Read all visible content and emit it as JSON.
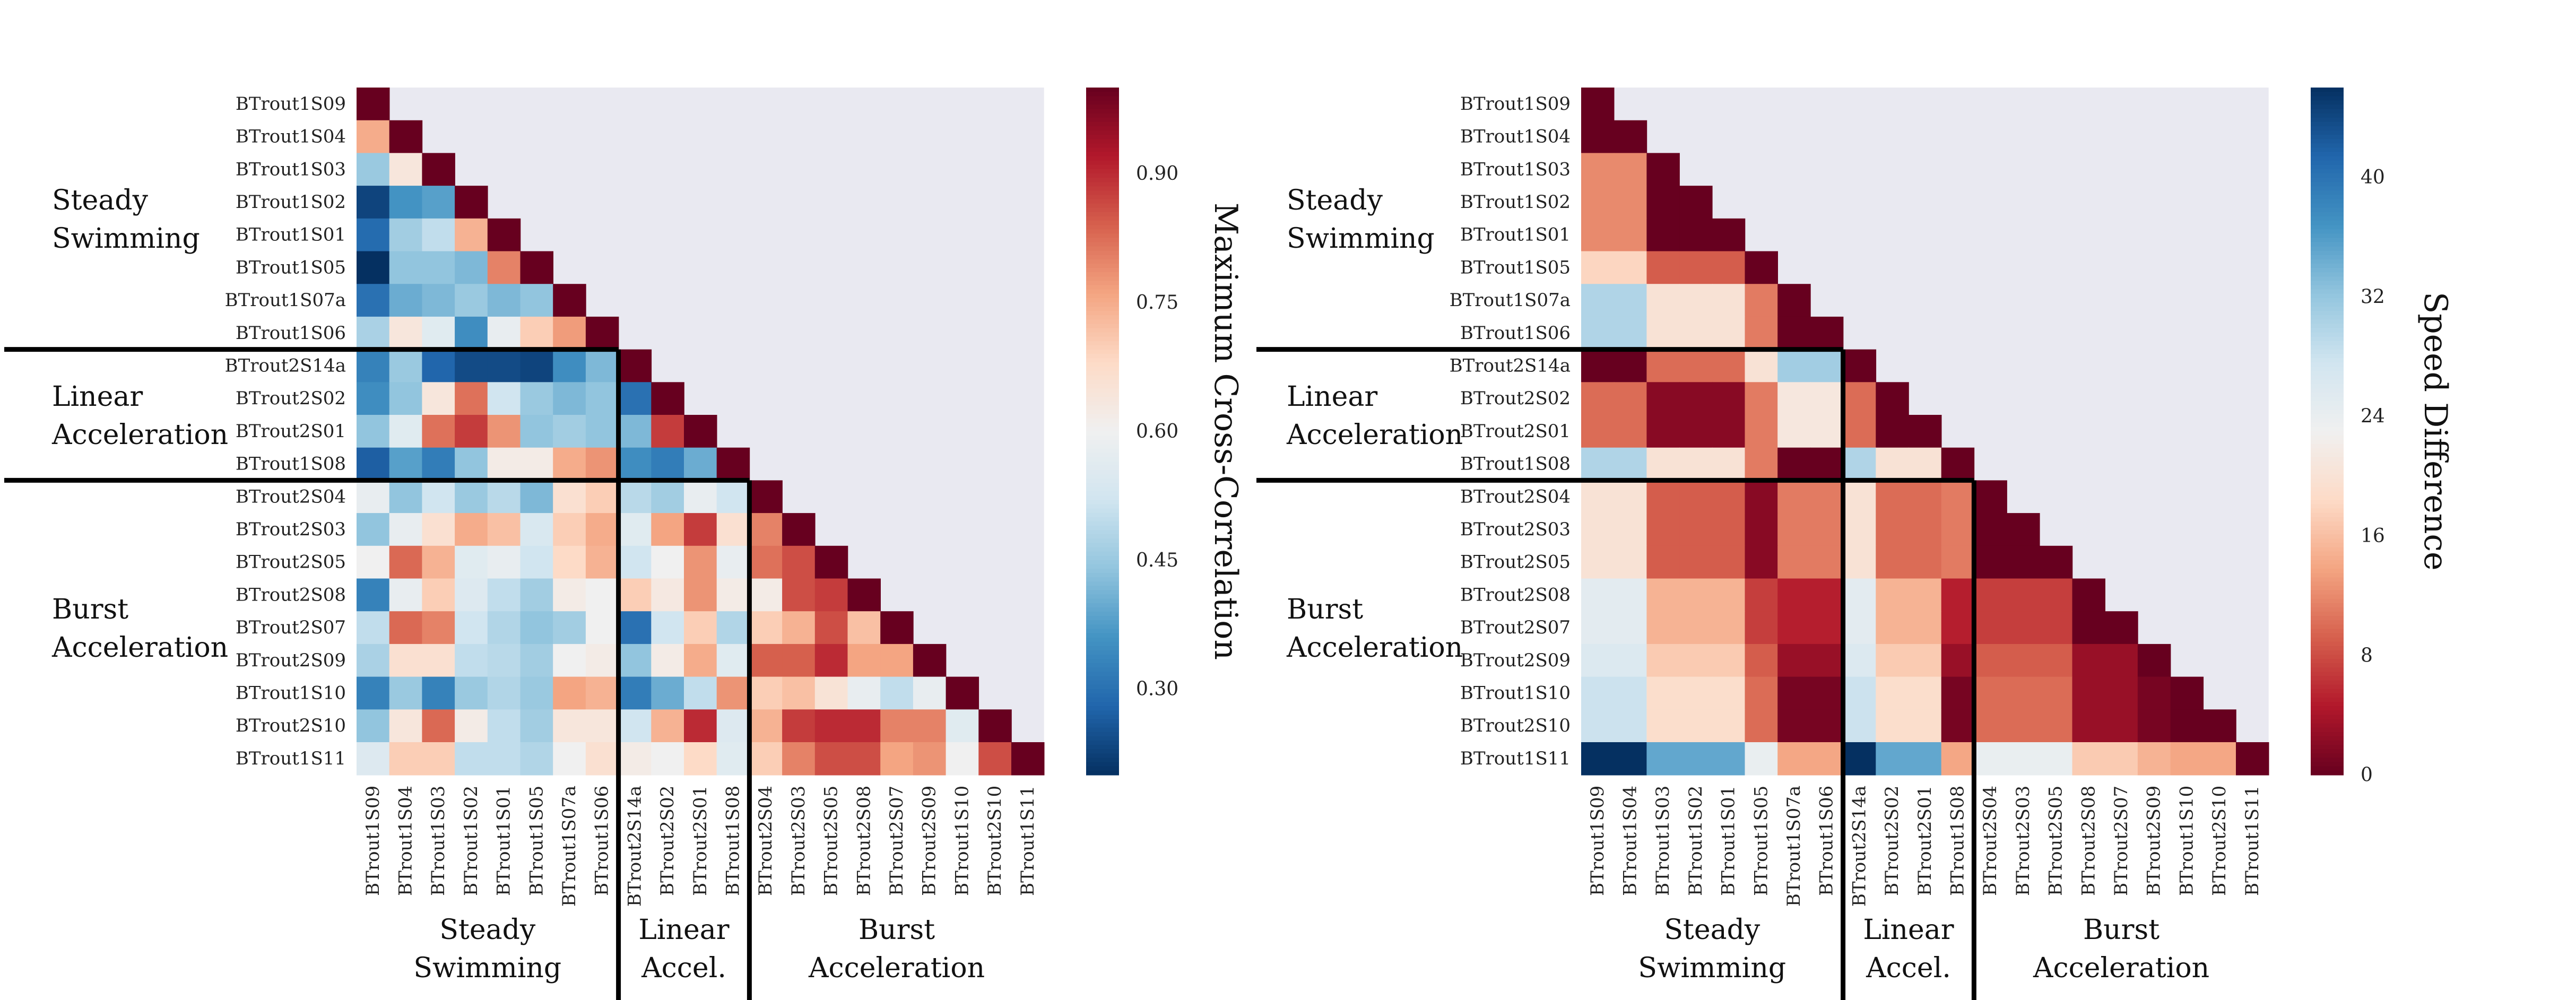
{
  "colors": {
    "panel_background": "#e9e9f1",
    "separator_lines": "#000000",
    "left_colormap": "RdBu_r (dark blue low, white mid, dark red high)",
    "right_colormap": "RdBu (dark red low, white mid, dark blue high)"
  },
  "labels": [
    "BTrout1S09",
    "BTrout1S04",
    "BTrout1S03",
    "BTrout1S02",
    "BTrout1S01",
    "BTrout1S05",
    "BTrout1S07a",
    "BTrout1S06",
    "BTrout2S14a",
    "BTrout2S02",
    "BTrout2S01",
    "BTrout1S08",
    "BTrout2S04",
    "BTrout2S03",
    "BTrout2S05",
    "BTrout2S08",
    "BTrout2S07",
    "BTrout2S09",
    "BTrout1S10",
    "BTrout2S10",
    "BTrout1S11"
  ],
  "row_groups": [
    {
      "lines": [
        "Steady",
        "Swimming"
      ]
    },
    {
      "lines": [
        "Linear",
        "Acceleration"
      ]
    },
    {
      "lines": [
        "Burst",
        "Acceleration"
      ]
    }
  ],
  "col_groups": [
    {
      "lines": [
        "Steady",
        "Swimming"
      ]
    },
    {
      "lines": [
        "Linear",
        "Accel."
      ]
    },
    {
      "lines": [
        "Burst",
        "Acceleration"
      ]
    }
  ],
  "chart_data": [
    {
      "type": "heatmap",
      "shape": "lower-triangular",
      "colorbar_label": "Maximum Cross-Correlation",
      "colorbar_range": [
        0.2,
        1.0
      ],
      "colorbar_ticks": [
        0.3,
        0.45,
        0.6,
        0.75,
        0.9
      ],
      "colorbar_tick_labels": [
        "0.30",
        "0.45",
        "0.60",
        "0.75",
        "0.90"
      ],
      "rows": [
        [
          1.0
        ],
        [
          0.75,
          1.0
        ],
        [
          0.45,
          0.64,
          1.0
        ],
        [
          0.23,
          0.36,
          0.38,
          1.0
        ],
        [
          0.29,
          0.46,
          0.5,
          0.74,
          1.0
        ],
        [
          0.2,
          0.44,
          0.44,
          0.42,
          0.8,
          1.0
        ],
        [
          0.3,
          0.4,
          0.42,
          0.45,
          0.42,
          0.44,
          1.0
        ],
        [
          0.47,
          0.64,
          0.56,
          0.35,
          0.58,
          0.7,
          0.77,
          1.0
        ],
        [
          0.33,
          0.45,
          0.28,
          0.24,
          0.24,
          0.23,
          0.35,
          0.42,
          1.0
        ],
        [
          0.35,
          0.44,
          0.64,
          0.82,
          0.52,
          0.45,
          0.42,
          0.44,
          0.3,
          1.0
        ],
        [
          0.44,
          0.56,
          0.82,
          0.88,
          0.78,
          0.44,
          0.46,
          0.44,
          0.42,
          0.88,
          1.0
        ],
        [
          0.27,
          0.38,
          0.32,
          0.44,
          0.62,
          0.62,
          0.75,
          0.78,
          0.35,
          0.32,
          0.4,
          1.0
        ],
        [
          0.58,
          0.44,
          0.52,
          0.45,
          0.49,
          0.42,
          0.66,
          0.7,
          0.49,
          0.46,
          0.58,
          0.52,
          1.0
        ],
        [
          0.44,
          0.58,
          0.66,
          0.75,
          0.72,
          0.54,
          0.7,
          0.75,
          0.56,
          0.76,
          0.88,
          0.66,
          0.8,
          1.0
        ],
        [
          0.6,
          0.83,
          0.74,
          0.56,
          0.58,
          0.52,
          0.68,
          0.74,
          0.52,
          0.6,
          0.78,
          0.58,
          0.82,
          0.86,
          1.0
        ],
        [
          0.33,
          0.58,
          0.7,
          0.55,
          0.5,
          0.46,
          0.62,
          0.6,
          0.7,
          0.63,
          0.78,
          0.62,
          0.62,
          0.86,
          0.88,
          1.0
        ],
        [
          0.5,
          0.83,
          0.8,
          0.52,
          0.48,
          0.44,
          0.46,
          0.6,
          0.3,
          0.52,
          0.7,
          0.48,
          0.7,
          0.74,
          0.86,
          0.72,
          1.0
        ],
        [
          0.47,
          0.66,
          0.66,
          0.5,
          0.49,
          0.46,
          0.6,
          0.62,
          0.44,
          0.62,
          0.75,
          0.56,
          0.84,
          0.84,
          0.9,
          0.76,
          0.76,
          1.0
        ],
        [
          0.33,
          0.45,
          0.33,
          0.45,
          0.48,
          0.45,
          0.76,
          0.74,
          0.32,
          0.4,
          0.5,
          0.78,
          0.7,
          0.72,
          0.65,
          0.58,
          0.5,
          0.58,
          1.0
        ],
        [
          0.44,
          0.64,
          0.83,
          0.62,
          0.5,
          0.46,
          0.64,
          0.64,
          0.52,
          0.74,
          0.9,
          0.55,
          0.74,
          0.88,
          0.9,
          0.9,
          0.8,
          0.8,
          0.56,
          1.0
        ],
        [
          0.55,
          0.7,
          0.7,
          0.5,
          0.5,
          0.48,
          0.6,
          0.66,
          0.62,
          0.6,
          0.68,
          0.56,
          0.7,
          0.8,
          0.86,
          0.86,
          0.76,
          0.78,
          0.6,
          0.86,
          1.0
        ]
      ]
    },
    {
      "type": "heatmap",
      "shape": "lower-triangular",
      "colorbar_label": "Speed Difference",
      "colorbar_range": [
        0,
        46
      ],
      "colorbar_ticks": [
        0,
        8,
        16,
        24,
        32,
        40
      ],
      "colorbar_tick_labels": [
        "0",
        "8",
        "16",
        "24",
        "32",
        "40"
      ],
      "rows": [
        [
          0
        ],
        [
          0,
          0
        ],
        [
          12,
          12,
          0
        ],
        [
          12,
          12,
          0,
          0
        ],
        [
          12,
          12,
          0,
          0,
          0
        ],
        [
          18,
          18,
          9,
          9,
          9,
          0
        ],
        [
          30,
          30,
          20,
          20,
          20,
          11,
          0
        ],
        [
          30,
          30,
          20,
          20,
          20,
          11,
          0,
          0
        ],
        [
          0,
          0,
          10,
          10,
          10,
          20,
          31,
          31,
          0
        ],
        [
          10,
          10,
          2,
          2,
          2,
          11,
          21,
          21,
          10,
          0
        ],
        [
          10,
          10,
          2,
          2,
          2,
          11,
          21,
          21,
          10,
          0,
          0
        ],
        [
          30,
          30,
          20,
          20,
          20,
          11,
          0,
          0,
          30,
          20,
          20,
          0
        ],
        [
          20,
          20,
          9,
          9,
          9,
          2,
          11,
          11,
          20,
          10,
          10,
          11,
          0
        ],
        [
          20,
          20,
          9,
          9,
          9,
          2,
          11,
          11,
          20,
          10,
          10,
          11,
          0,
          0
        ],
        [
          20,
          20,
          9,
          9,
          9,
          2,
          11,
          11,
          20,
          10,
          10,
          11,
          0,
          0,
          0
        ],
        [
          25,
          25,
          15,
          15,
          15,
          7,
          5,
          5,
          25,
          15,
          15,
          5,
          7,
          7,
          7,
          0
        ],
        [
          25,
          25,
          15,
          15,
          15,
          7,
          5,
          5,
          25,
          15,
          15,
          5,
          7,
          7,
          7,
          0,
          0
        ],
        [
          26,
          26,
          17,
          17,
          17,
          9,
          3,
          3,
          26,
          17,
          17,
          3,
          9,
          9,
          9,
          3,
          3,
          0
        ],
        [
          28,
          28,
          19,
          19,
          19,
          10,
          1,
          1,
          28,
          19,
          19,
          1,
          10,
          10,
          10,
          3,
          3,
          1,
          0
        ],
        [
          28,
          28,
          19,
          19,
          19,
          10,
          1,
          1,
          28,
          19,
          19,
          1,
          10,
          10,
          10,
          3,
          3,
          1,
          0,
          0
        ],
        [
          46,
          46,
          35,
          35,
          35,
          24,
          14,
          14,
          46,
          35,
          35,
          14,
          24,
          24,
          24,
          17,
          17,
          15,
          14,
          14,
          0
        ]
      ]
    }
  ]
}
